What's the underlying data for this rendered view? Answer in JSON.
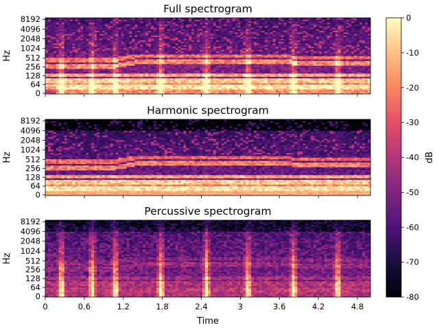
{
  "chart_data": [
    {
      "type": "heatmap",
      "title": "Full spectrogram",
      "xlabel": "",
      "ylabel": "Hz",
      "xlim": [
        0,
        5.0
      ],
      "x_ticks": [
        "0",
        "0.6",
        "1.2",
        "1.8",
        "2.4",
        "3",
        "3.6",
        "4.2",
        "4.8"
      ],
      "y_ticks": [
        "0",
        "64",
        "128",
        "256",
        "512",
        "1024",
        "2048",
        "4096",
        "8192"
      ],
      "y_scale": "symlog",
      "onsets_s": [
        0.25,
        0.72,
        1.08,
        1.78,
        2.48,
        3.12,
        3.82,
        4.5
      ],
      "harmonic_bands": "strong low-frequency bands 64-512 Hz with rising pitch near 1.1 s",
      "colormap": "magma"
    },
    {
      "type": "heatmap",
      "title": "Harmonic spectrogram",
      "xlabel": "",
      "ylabel": "Hz",
      "xlim": [
        0,
        5.0
      ],
      "x_ticks": [
        "0",
        "0.6",
        "1.2",
        "1.8",
        "2.4",
        "3",
        "3.6",
        "4.2",
        "4.8"
      ],
      "y_ticks": [
        "0",
        "64",
        "128",
        "256",
        "512",
        "1024",
        "2048",
        "4096",
        "8192"
      ],
      "y_scale": "symlog",
      "colormap": "magma"
    },
    {
      "type": "heatmap",
      "title": "Percussive spectrogram",
      "xlabel": "Time",
      "ylabel": "Hz",
      "xlim": [
        0,
        5.0
      ],
      "x_ticks": [
        "0",
        "0.6",
        "1.2",
        "1.8",
        "2.4",
        "3",
        "3.6",
        "4.2",
        "4.8"
      ],
      "y_ticks": [
        "0",
        "64",
        "128",
        "256",
        "512",
        "1024",
        "2048",
        "4096",
        "8192"
      ],
      "y_scale": "symlog",
      "colormap": "magma"
    }
  ],
  "colorbar": {
    "label": "dB",
    "ticks": [
      "0",
      "-10",
      "-20",
      "-30",
      "-40",
      "-50",
      "-60",
      "-70",
      "-80"
    ],
    "range": [
      -80,
      0
    ],
    "colormap": "magma"
  }
}
